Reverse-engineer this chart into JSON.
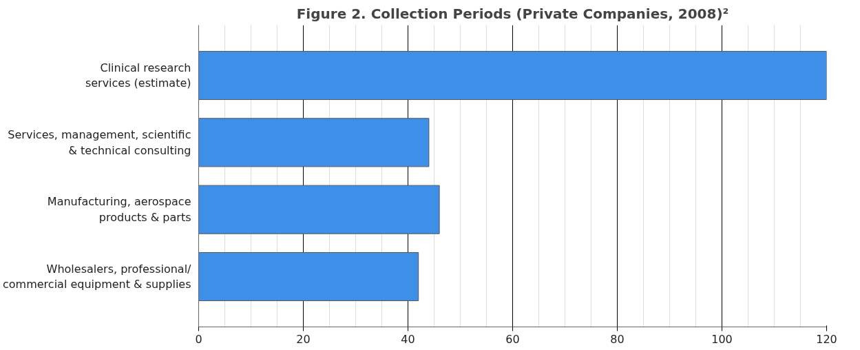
{
  "chart_data": {
    "type": "bar",
    "orientation": "horizontal",
    "title": "Figure 2. Collection Periods (Private Companies, 2008)²",
    "categories": [
      "Clinical research services (estimate)",
      "Services, management, scientific & technical consulting",
      "Manufacturing, aerospace products & parts",
      "Wholesalers, professional/ commercial equipment & supplies"
    ],
    "values": [
      120,
      44,
      46,
      42
    ],
    "color": "#3d8fe8",
    "xlim": [
      0,
      120
    ],
    "xticks": [
      0,
      20,
      40,
      60,
      80,
      100,
      120
    ],
    "grid": "x"
  }
}
